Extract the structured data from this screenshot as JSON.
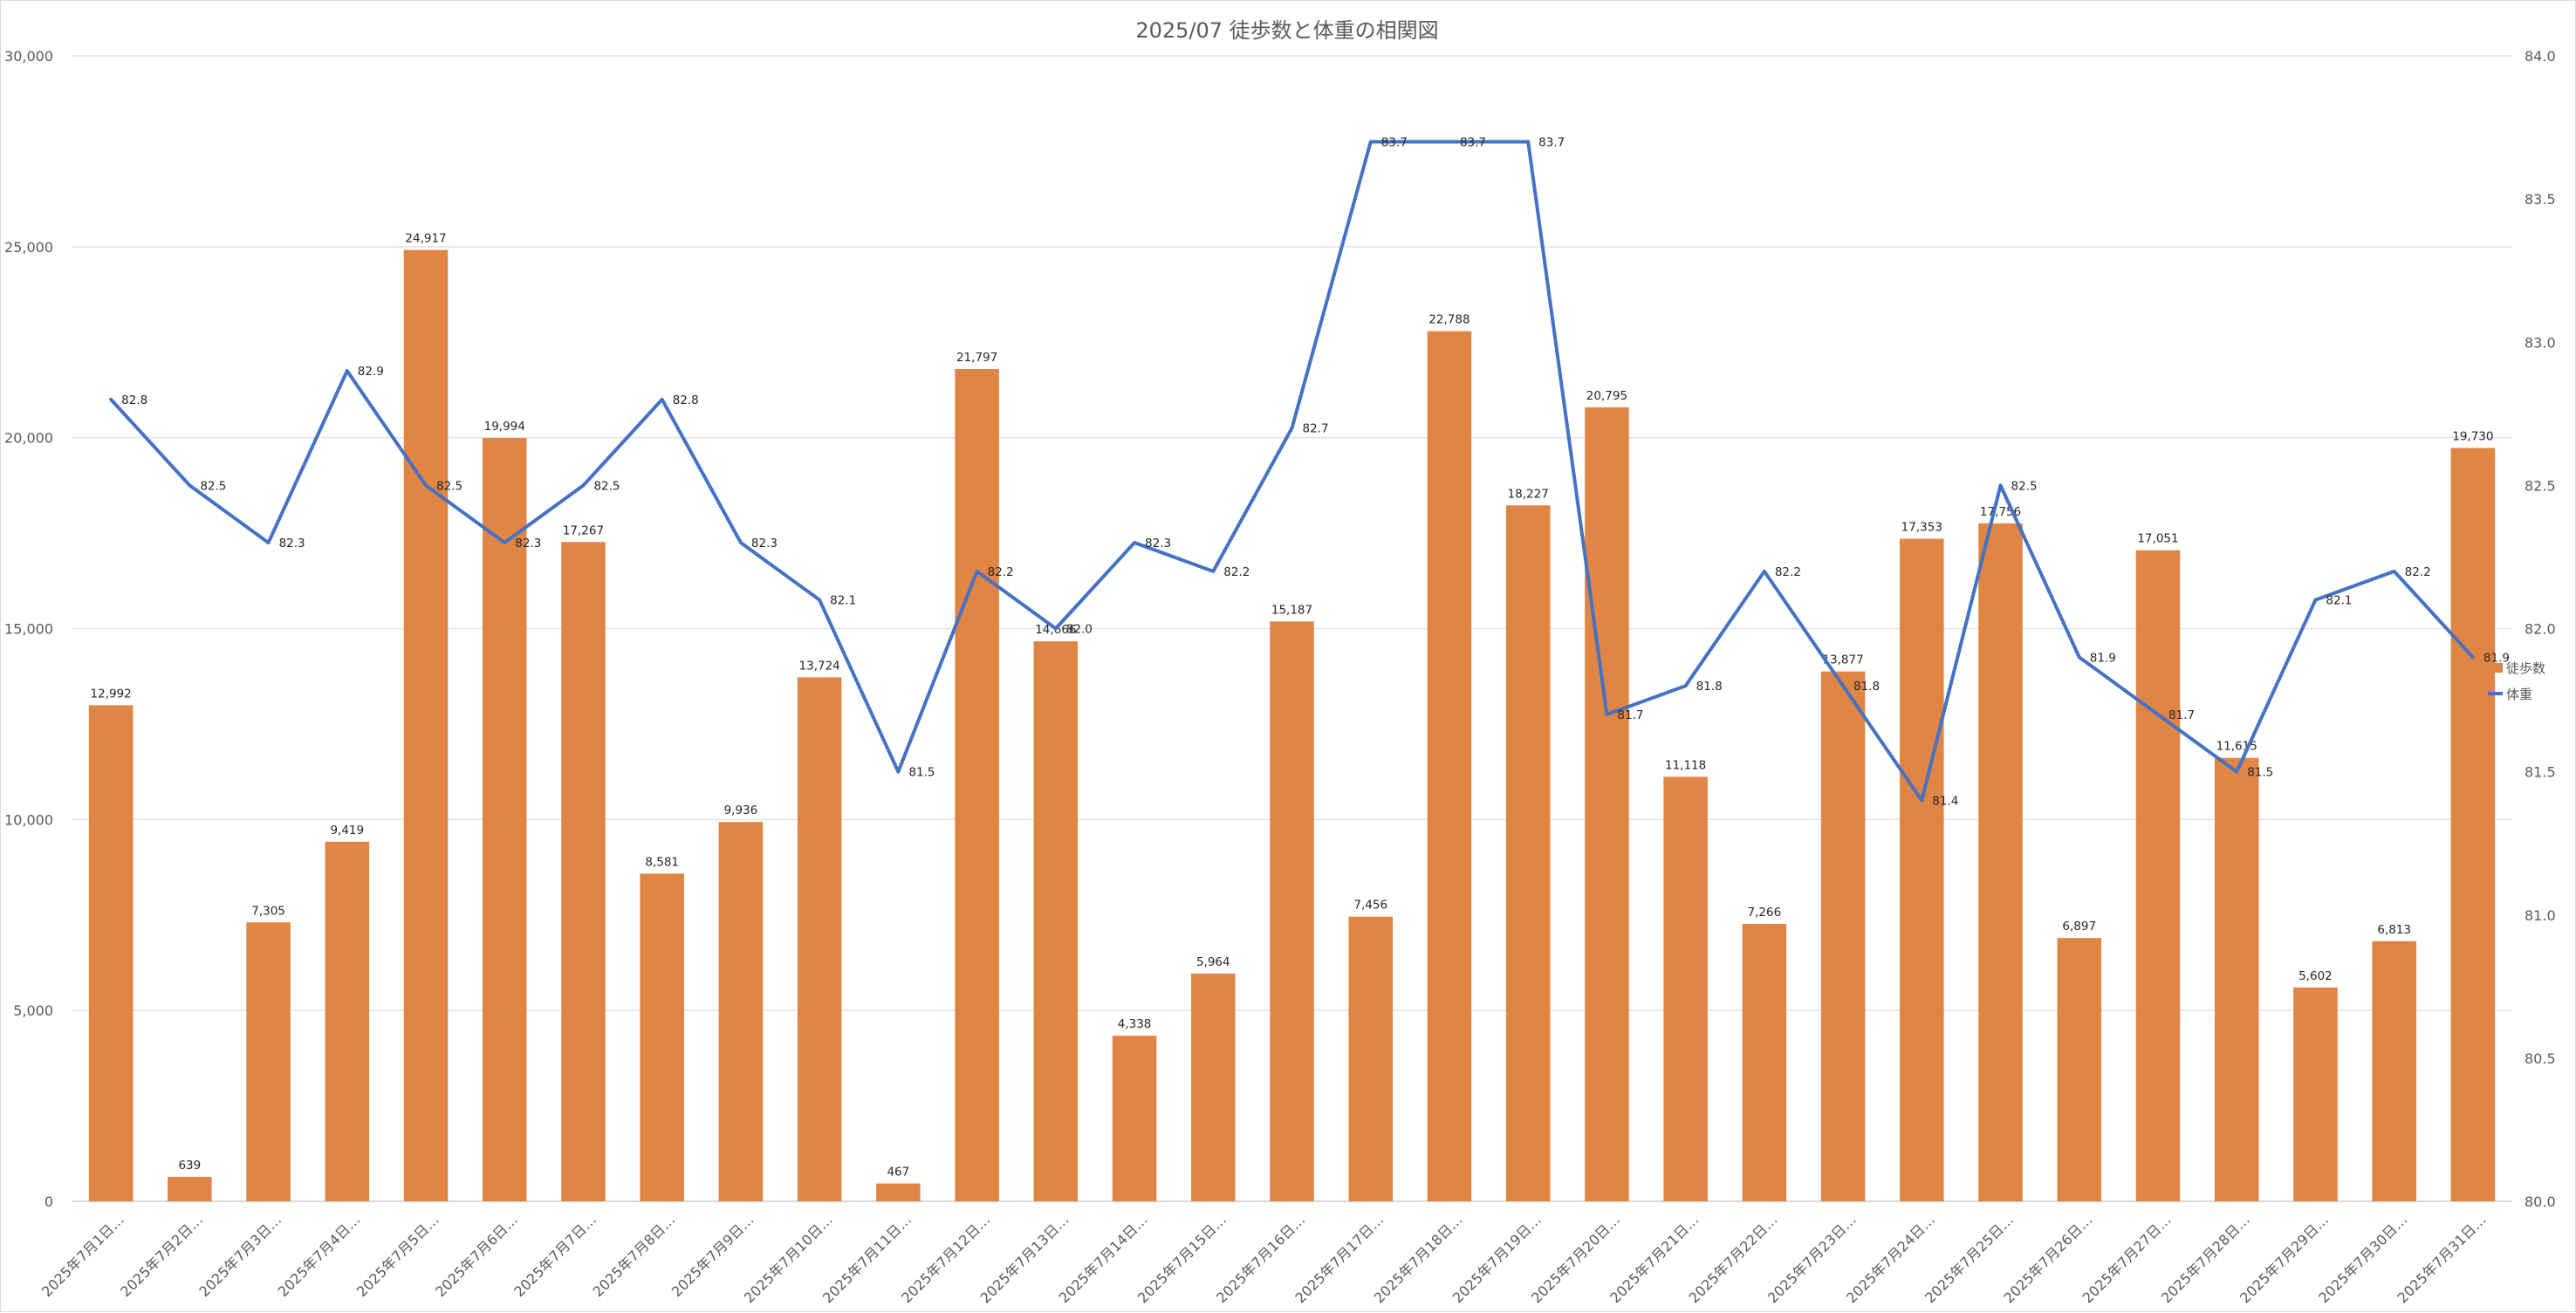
{
  "chart_data": {
    "type": "bar",
    "title": "2025/07 徒歩数と体重の相関図",
    "categories": [
      "2025年7月1日…",
      "2025年7月2日…",
      "2025年7月3日…",
      "2025年7月4日…",
      "2025年7月5日…",
      "2025年7月6日…",
      "2025年7月7日…",
      "2025年7月8日…",
      "2025年7月9日…",
      "2025年7月10日…",
      "2025年7月11日…",
      "2025年7月12日…",
      "2025年7月13日…",
      "2025年7月14日…",
      "2025年7月15日…",
      "2025年7月16日…",
      "2025年7月17日…",
      "2025年7月18日…",
      "2025年7月19日…",
      "2025年7月20日…",
      "2025年7月21日…",
      "2025年7月22日…",
      "2025年7月23日…",
      "2025年7月24日…",
      "2025年7月25日…",
      "2025年7月26日…",
      "2025年7月27日…",
      "2025年7月28日…",
      "2025年7月29日…",
      "2025年7月30日…",
      "2025年7月31日…"
    ],
    "series": [
      {
        "name": "徒歩数",
        "type": "bar",
        "axis": "left",
        "color": "#e08543",
        "values": [
          12992,
          639,
          7305,
          9419,
          24917,
          19994,
          17267,
          8581,
          9936,
          13724,
          467,
          21797,
          14666,
          4338,
          5964,
          15187,
          7456,
          22788,
          18227,
          20795,
          11118,
          7266,
          13877,
          17353,
          17756,
          6897,
          17051,
          11615,
          5602,
          6813,
          19730
        ],
        "labels": [
          "12,992",
          "639",
          "7,305",
          "9,419",
          "24,917",
          "19,994",
          "17,267",
          "8,581",
          "9,936",
          "13,724",
          "467",
          "21,797",
          "14,666",
          "4,338",
          "5,964",
          "15,187",
          "7,456",
          "22,788",
          "18,227",
          "20,795",
          "11,118",
          "7,266",
          "13,877",
          "17,353",
          "17,756",
          "6,897",
          "17,051",
          "11,615",
          "5,602",
          "6,813",
          "19,730"
        ]
      },
      {
        "name": "体重",
        "type": "line",
        "axis": "right",
        "color": "#4472c4",
        "values": [
          82.8,
          82.5,
          82.3,
          82.9,
          82.5,
          82.3,
          82.5,
          82.8,
          82.3,
          82.1,
          81.5,
          82.2,
          82.0,
          82.3,
          82.2,
          82.7,
          83.7,
          83.7,
          83.7,
          81.7,
          81.8,
          82.2,
          81.8,
          81.4,
          82.5,
          81.9,
          81.7,
          81.5,
          82.1,
          82.2,
          81.9
        ],
        "labels": [
          "82.8",
          "82.5",
          "82.3",
          "82.9",
          "82.5",
          "82.3",
          "82.5",
          "82.8",
          "82.3",
          "82.1",
          "81.5",
          "82.2",
          "82.0",
          "82.3",
          "82.2",
          "82.7",
          "83.7",
          "83.7",
          "83.7",
          "81.7",
          "81.8",
          "82.2",
          "81.8",
          "81.4",
          "82.5",
          "81.9",
          "81.7",
          "81.5",
          "82.1",
          "82.2",
          "81.9"
        ]
      }
    ],
    "y_left": {
      "min": 0,
      "max": 30000,
      "ticks": [
        "0",
        "5,000",
        "10,000",
        "15,000",
        "20,000",
        "25,000",
        "30,000"
      ],
      "tick_values": [
        0,
        5000,
        10000,
        15000,
        20000,
        25000,
        30000
      ]
    },
    "y_right": {
      "min": 80.0,
      "max": 84.0,
      "ticks": [
        "80.0",
        "80.5",
        "81.0",
        "81.5",
        "82.0",
        "82.5",
        "83.0",
        "83.5",
        "84.0"
      ],
      "tick_values": [
        80.0,
        80.5,
        81.0,
        81.5,
        82.0,
        82.5,
        83.0,
        83.5,
        84.0
      ]
    },
    "grid": true,
    "legend_position": "right",
    "legend": [
      {
        "label": "徒歩数",
        "marker": "square",
        "color": "#e08543"
      },
      {
        "label": "体重",
        "marker": "line",
        "color": "#4472c4"
      }
    ]
  }
}
